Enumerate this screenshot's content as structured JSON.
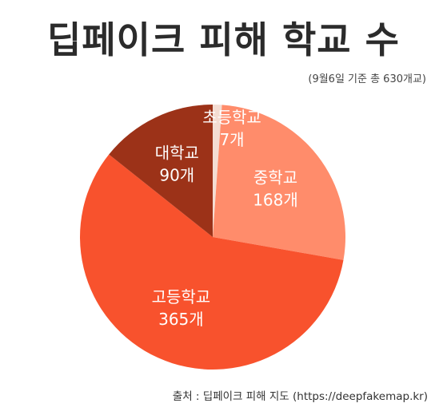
{
  "chart_data": {
    "type": "pie",
    "title": "딥페이크 피해 학교 수",
    "subtitle": "(9월6일 기준 총 630개교)",
    "source": "출처 : 딥페이크 피해 지도 (https://deepfakemap.kr)",
    "slices": [
      {
        "label": "초등학교",
        "value": 7,
        "value_label": "7개",
        "color": "#f4ddd3"
      },
      {
        "label": "중학교",
        "value": 168,
        "value_label": "168개",
        "color": "#ff8c6b"
      },
      {
        "label": "고등학교",
        "value": 365,
        "value_label": "365개",
        "color": "#f8522d"
      },
      {
        "label": "대학교",
        "value": 90,
        "value_label": "90개",
        "color": "#9c3218"
      }
    ]
  }
}
